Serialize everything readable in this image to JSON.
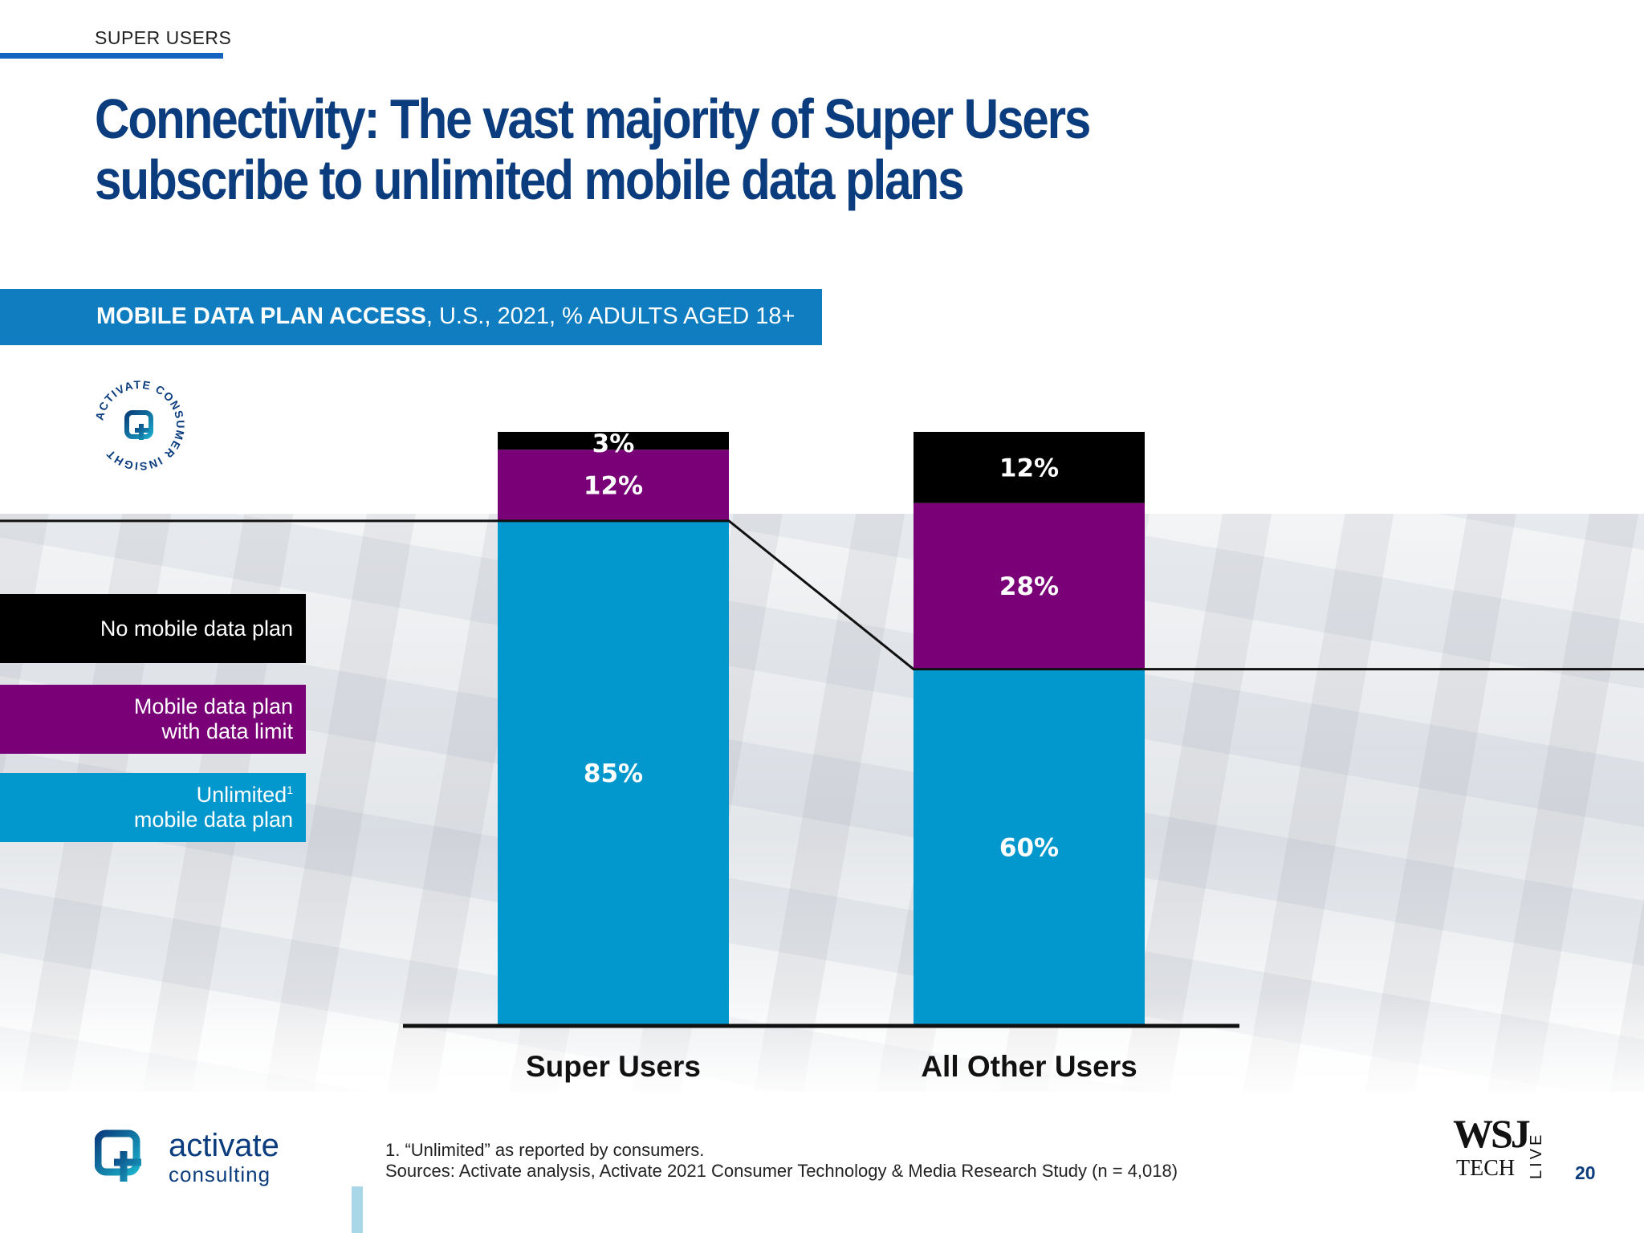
{
  "header": {
    "section": "SUPER USERS",
    "title": "Connectivity: The vast majority of Super Users subscribe to unlimited mobile data plans"
  },
  "subtitle": {
    "bold": "MOBILE DATA PLAN ACCESS",
    "rest": ", U.S., 2021, % ADULTS AGED 18+"
  },
  "badge": {
    "text": "ACTIVATE CONSUMER INSIGHT"
  },
  "legend": {
    "none": "No mobile data plan",
    "limited_line1": "Mobile data plan",
    "limited_line2": "with data limit",
    "unlimited_line1": "Unlimited",
    "unlimited_sup": "1",
    "unlimited_line2": "mobile data plan"
  },
  "colors": {
    "unlimited": "#0398cd",
    "limited": "#7a0078",
    "none": "#000000",
    "title": "#0b3d7e",
    "subtitle_bar": "#0f7dbf"
  },
  "chart_data": {
    "type": "bar",
    "stacked": true,
    "categories": [
      "Super Users",
      "All Other Users"
    ],
    "series": [
      {
        "name": "Unlimited mobile data plan",
        "values": [
          85,
          60
        ]
      },
      {
        "name": "Mobile data plan with data limit",
        "values": [
          12,
          28
        ]
      },
      {
        "name": "No mobile data plan",
        "values": [
          3,
          12
        ]
      }
    ],
    "data_labels": [
      [
        "85%",
        "12%",
        "3%"
      ],
      [
        "60%",
        "28%",
        "12%"
      ]
    ],
    "ylim": [
      0,
      100
    ],
    "legend_position": "left",
    "grid": false
  },
  "footer": {
    "logo_main": "activate",
    "logo_sub": "consulting",
    "footnote_1": "1. “Unlimited” as reported by consumers.",
    "footnote_2": "Sources: Activate analysis, Activate 2021 Consumer Technology & Media Research Study (n = 4,018)",
    "wsj": "WSJ",
    "tech": "TECH",
    "live": "LIVE",
    "page": "20"
  }
}
